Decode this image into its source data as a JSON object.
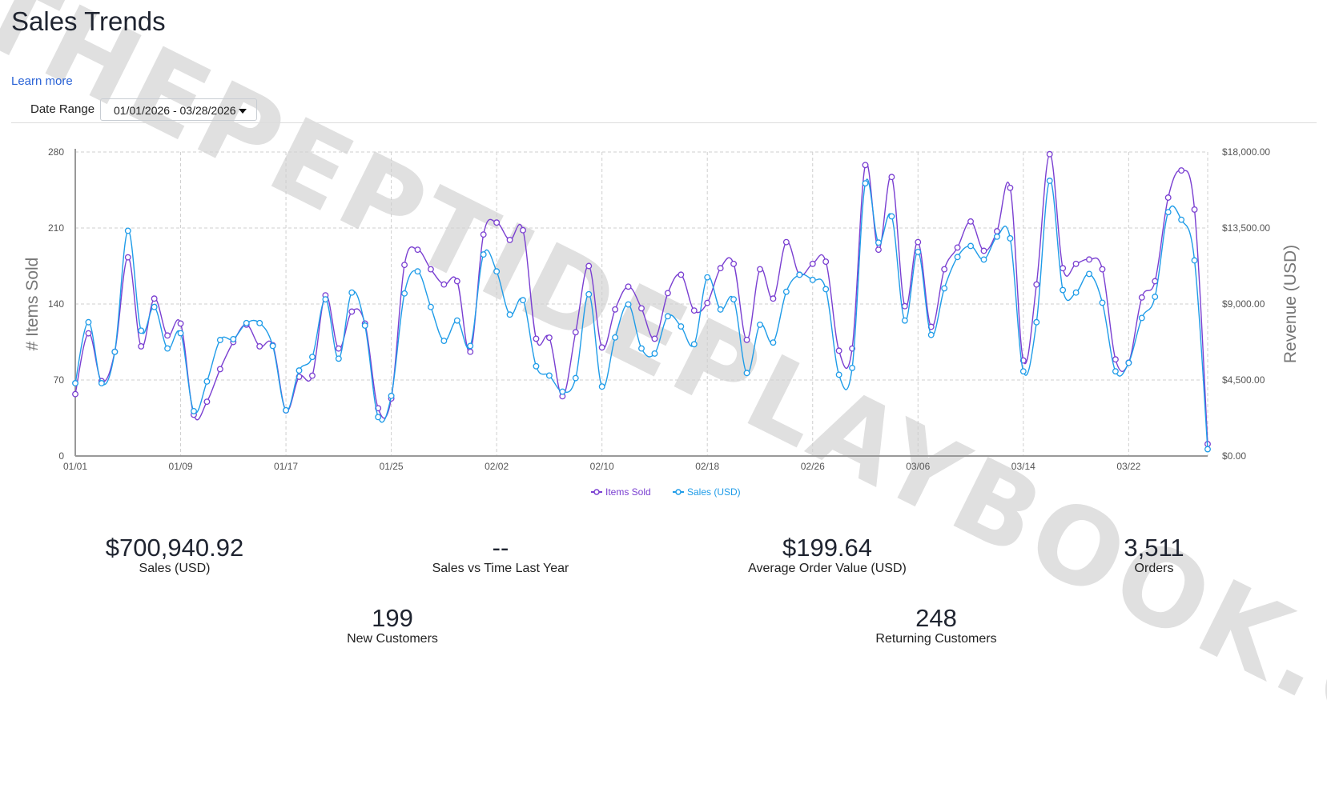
{
  "header": {
    "title": "Sales Trends",
    "learn_more": "Learn more"
  },
  "filters": {
    "date_range_label": "Date Range",
    "date_range_value": "01/01/2026 - 03/28/2026"
  },
  "watermark": "THEPEPTIDEPLAYBOOK.CO",
  "colors": {
    "items_sold": "#7a3fd1",
    "sales": "#1f9ce8",
    "grid": "#cfcfcf"
  },
  "chart_data": {
    "type": "line",
    "ylabel": "# Items Sold",
    "y2label": "Revenue (USD)",
    "ylim": [
      0,
      280
    ],
    "y2lim": [
      0,
      18000
    ],
    "yticks": [
      "0",
      "70",
      "140",
      "210",
      "280"
    ],
    "y2ticks": [
      "$0.00",
      "$4,500.00",
      "$9,000.00",
      "$13,500.00",
      "$18,000.00"
    ],
    "xticks": [
      "01/01",
      "01/09",
      "01/17",
      "01/25",
      "02/02",
      "02/10",
      "02/18",
      "02/26",
      "03/06",
      "03/14",
      "03/22"
    ],
    "grid": true,
    "legend": "bottom",
    "x": [
      "01/01",
      "01/02",
      "01/03",
      "01/04",
      "01/05",
      "01/06",
      "01/07",
      "01/08",
      "01/09",
      "01/10",
      "01/11",
      "01/12",
      "01/13",
      "01/14",
      "01/15",
      "01/16",
      "01/17",
      "01/18",
      "01/19",
      "01/20",
      "01/21",
      "01/22",
      "01/23",
      "01/24",
      "01/25",
      "01/26",
      "01/27",
      "01/28",
      "01/29",
      "01/30",
      "01/31",
      "02/01",
      "02/02",
      "02/03",
      "02/04",
      "02/05",
      "02/06",
      "02/07",
      "02/08",
      "02/09",
      "02/10",
      "02/11",
      "02/12",
      "02/13",
      "02/14",
      "02/15",
      "02/16",
      "02/17",
      "02/18",
      "02/19",
      "02/20",
      "02/21",
      "02/22",
      "02/23",
      "02/24",
      "02/25",
      "02/26",
      "02/27",
      "02/28",
      "03/01",
      "03/02",
      "03/03",
      "03/04",
      "03/05",
      "03/06",
      "03/07",
      "03/08",
      "03/09",
      "03/10",
      "03/11",
      "03/12",
      "03/13",
      "03/14",
      "03/15",
      "03/16",
      "03/17",
      "03/18",
      "03/19",
      "03/20",
      "03/21",
      "03/22",
      "03/23",
      "03/24",
      "03/25",
      "03/26",
      "03/27",
      "03/28"
    ],
    "series": [
      {
        "name": "Items Sold",
        "axis": "left",
        "values": [
          57,
          113,
          69,
          96,
          183,
          101,
          145,
          111,
          122,
          38,
          50,
          80,
          105,
          121,
          101,
          102,
          42,
          73,
          74,
          148,
          99,
          133,
          122,
          44,
          53,
          176,
          190,
          172,
          158,
          161,
          96,
          204,
          215,
          199,
          208,
          108,
          109,
          55,
          114,
          175,
          100,
          135,
          156,
          136,
          108,
          150,
          167,
          134,
          141,
          173,
          177,
          107,
          172,
          145,
          197,
          167,
          177,
          179,
          97,
          99,
          268,
          190,
          257,
          138,
          197,
          119,
          172,
          192,
          216,
          189,
          207,
          247,
          88,
          158,
          278,
          173,
          177,
          181,
          172,
          89,
          86,
          146,
          161,
          238,
          263,
          227,
          11
        ]
      },
      {
        "name": "Sales (USD)",
        "axis": "right",
        "values": [
          4312,
          7922,
          4312,
          6167,
          13337,
          7421,
          8825,
          6368,
          7270,
          2657,
          4412,
          6869,
          6919,
          7872,
          7872,
          6518,
          2708,
          5064,
          5866,
          9276,
          5766,
          9677,
          7722,
          2306,
          3560,
          9627,
          10931,
          8825,
          6819,
          8022,
          6518,
          11933,
          10931,
          8373,
          9226,
          5315,
          4763,
          3811,
          4613,
          9577,
          4111,
          7020,
          8975,
          6368,
          6067,
          8273,
          7671,
          6618,
          10580,
          8674,
          9276,
          4914,
          7772,
          6719,
          9727,
          10730,
          10429,
          9878,
          4813,
          5215,
          16145,
          12635,
          14190,
          8022,
          12084,
          7170,
          9928,
          11783,
          12435,
          11632,
          12986,
          12886,
          5014,
          7922,
          16296,
          9827,
          9677,
          10780,
          9075,
          5014,
          5515,
          8173,
          9426,
          14440,
          13989,
          11582,
          401
        ]
      }
    ]
  },
  "stats": [
    {
      "value": "$700,940.92",
      "label": "Sales (USD)"
    },
    {
      "value": "--",
      "label": "Sales vs Time Last Year"
    },
    {
      "value": "$199.64",
      "label": "Average Order Value (USD)"
    },
    {
      "value": "3,511",
      "label": "Orders"
    },
    {
      "value": "199",
      "label": "New Customers"
    },
    {
      "value": "248",
      "label": "Returning Customers"
    }
  ]
}
